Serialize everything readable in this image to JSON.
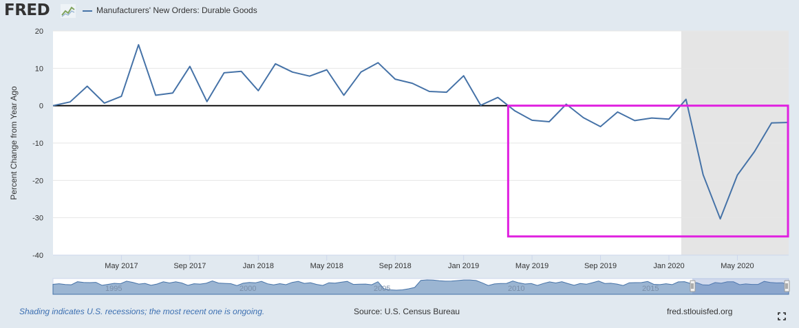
{
  "header": {
    "logo_text": "FRED",
    "logo_icon": "line-chart-icon"
  },
  "legend": {
    "series_name": "Manufacturers' New Orders: Durable Goods",
    "color": "#4572a7"
  },
  "footer": {
    "recession_note": "Shading indicates U.S. recessions; the most recent one is ongoing.",
    "source": "Source: U.S. Census Bureau",
    "site": "fred.stlouisfed.org",
    "expand_icon": "fullscreen-icon"
  },
  "colors": {
    "series": "#4572a7",
    "recession": "#e5e5e5",
    "highlight": "#e020e0",
    "background": "#e1e9f0"
  },
  "chart_data": {
    "type": "line",
    "ylabel": "Percent Change from Year Ago",
    "ylim": [
      -40,
      20
    ],
    "yticks": [
      20,
      10,
      0,
      -10,
      -20,
      -30,
      -40
    ],
    "xticks": [
      "May 2017",
      "Sep 2017",
      "Jan 2018",
      "May 2018",
      "Sep 2018",
      "Jan 2019",
      "May 2019",
      "Sep 2019",
      "Jan 2020",
      "May 2020"
    ],
    "x": [
      "2017-01",
      "2017-02",
      "2017-03",
      "2017-04",
      "2017-05",
      "2017-06",
      "2017-07",
      "2017-08",
      "2017-09",
      "2017-10",
      "2017-11",
      "2017-12",
      "2018-01",
      "2018-02",
      "2018-03",
      "2018-04",
      "2018-05",
      "2018-06",
      "2018-07",
      "2018-08",
      "2018-09",
      "2018-10",
      "2018-11",
      "2018-12",
      "2019-01",
      "2019-02",
      "2019-03",
      "2019-04",
      "2019-05",
      "2019-06",
      "2019-07",
      "2019-08",
      "2019-09",
      "2019-10",
      "2019-11",
      "2019-12",
      "2020-01",
      "2020-02",
      "2020-03",
      "2020-04",
      "2020-05",
      "2020-06",
      "2020-07",
      "2020-08"
    ],
    "series": [
      {
        "name": "Manufacturers' New Orders: Durable Goods",
        "values": [
          0.0,
          1.0,
          5.2,
          0.7,
          2.5,
          16.3,
          2.8,
          3.4,
          10.5,
          1.1,
          8.8,
          9.2,
          4.0,
          11.2,
          9.0,
          7.9,
          9.6,
          2.8,
          9.0,
          11.5,
          7.1,
          6.0,
          3.8,
          3.6,
          8.0,
          0.1,
          2.2,
          -1.4,
          -3.9,
          -4.3,
          0.4,
          -3.2,
          -5.6,
          -1.7,
          -4.0,
          -3.3,
          -3.6,
          1.7,
          -18.5,
          -30.3,
          -18.6,
          -12.3,
          -4.6,
          -4.5
        ]
      }
    ],
    "recession": {
      "start": "2020-02",
      "end": "2020-08"
    },
    "highlight_box": {
      "x_start": "2019-03",
      "x_end": "2020-08",
      "y_top": 0,
      "y_bottom": -35
    },
    "navigator_labels": [
      "1995",
      "2000",
      "2005",
      "2010",
      "2015"
    ]
  }
}
